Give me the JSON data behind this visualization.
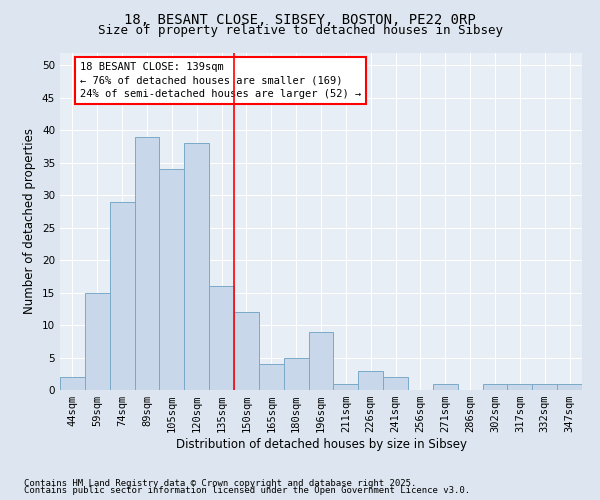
{
  "title_line1": "18, BESANT CLOSE, SIBSEY, BOSTON, PE22 0RP",
  "title_line2": "Size of property relative to detached houses in Sibsey",
  "xlabel": "Distribution of detached houses by size in Sibsey",
  "ylabel": "Number of detached properties",
  "categories": [
    "44sqm",
    "59sqm",
    "74sqm",
    "89sqm",
    "105sqm",
    "120sqm",
    "135sqm",
    "150sqm",
    "165sqm",
    "180sqm",
    "196sqm",
    "211sqm",
    "226sqm",
    "241sqm",
    "256sqm",
    "271sqm",
    "286sqm",
    "302sqm",
    "317sqm",
    "332sqm",
    "347sqm"
  ],
  "values": [
    2,
    15,
    29,
    39,
    34,
    38,
    16,
    12,
    4,
    5,
    9,
    1,
    3,
    2,
    0,
    1,
    0,
    1,
    1,
    1,
    1
  ],
  "bar_color": "#c8d8ea",
  "bar_edge_color": "#7aaac8",
  "red_line_x": 6.5,
  "ylim": [
    0,
    52
  ],
  "yticks": [
    0,
    5,
    10,
    15,
    20,
    25,
    30,
    35,
    40,
    45,
    50
  ],
  "annotation_title": "18 BESANT CLOSE: 139sqm",
  "annotation_line1": "← 76% of detached houses are smaller (169)",
  "annotation_line2": "24% of semi-detached houses are larger (52) →",
  "footnote_line1": "Contains HM Land Registry data © Crown copyright and database right 2025.",
  "footnote_line2": "Contains public sector information licensed under the Open Government Licence v3.0.",
  "background_color": "#dde6f0",
  "plot_background_color": "#e8eef5",
  "grid_color": "#ffffff",
  "title_fontsize": 10,
  "subtitle_fontsize": 9,
  "axis_label_fontsize": 8.5,
  "tick_fontsize": 7.5,
  "annotation_fontsize": 7.5,
  "footnote_fontsize": 6.5
}
